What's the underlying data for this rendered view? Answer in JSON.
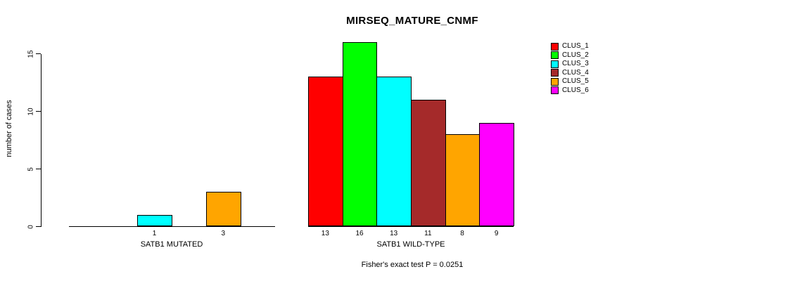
{
  "chart_data": {
    "type": "bar",
    "title": "MIRSEQ_MATURE_CNMF",
    "ylabel": "number of cases",
    "yticks": [
      0,
      5,
      10,
      15
    ],
    "ylim": [
      0,
      16.5
    ],
    "grid": false,
    "legend_position": "top-right",
    "series_names": [
      "CLUS_1",
      "CLUS_2",
      "CLUS_3",
      "CLUS_4",
      "CLUS_5",
      "CLUS_6"
    ],
    "colors": [
      "#ff0000",
      "#00ff00",
      "#00ffff",
      "#a52a2a",
      "#ffa500",
      "#ff00ff"
    ],
    "groups": [
      {
        "label": "SATB1 MUTATED",
        "values": [
          0,
          0,
          1,
          0,
          3,
          0
        ],
        "bar_labels": [
          "",
          "",
          "1",
          "",
          "3",
          ""
        ]
      },
      {
        "label": "SATB1 WILD-TYPE",
        "values": [
          13,
          16,
          13,
          11,
          8,
          9
        ],
        "bar_labels": [
          "13",
          "16",
          "13",
          "11",
          "8",
          "9"
        ]
      }
    ],
    "annotation": "Fisher's exact test P = 0.0251"
  }
}
